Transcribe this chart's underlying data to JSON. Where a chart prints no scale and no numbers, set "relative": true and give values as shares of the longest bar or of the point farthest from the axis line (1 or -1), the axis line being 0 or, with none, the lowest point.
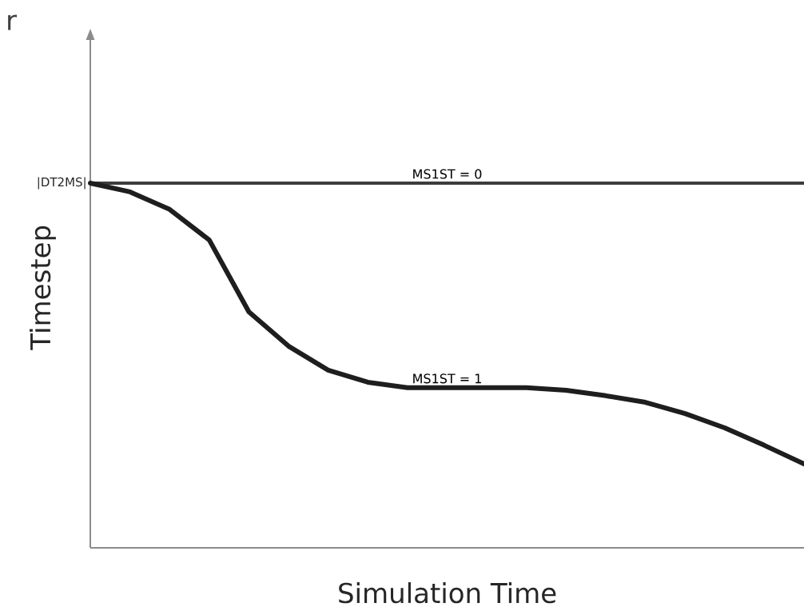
{
  "chart_data": {
    "type": "line",
    "title": "r",
    "xlabel": "Simulation Time",
    "ylabel": "Timestep",
    "relative": true,
    "marker": "none",
    "line_style": "solid",
    "legend": false,
    "categories": [
      null,
      null,
      null,
      null,
      null,
      null,
      null,
      null,
      null,
      null,
      null,
      null,
      null,
      null,
      null,
      null,
      null,
      null,
      null
    ],
    "series": [
      {
        "name": "MS1ST = 0",
        "color": "#3c3c3c",
        "values": [
          1,
          1,
          1,
          1,
          1,
          1,
          1,
          1,
          1,
          1,
          1,
          1,
          1,
          1,
          1,
          1,
          1,
          1,
          1
        ]
      },
      {
        "name": "MS1ST = 1",
        "color": "#1e1e1e",
        "values": [
          1.0,
          0.976,
          0.928,
          0.844,
          0.647,
          0.553,
          0.487,
          0.454,
          0.439,
          0.439,
          0.439,
          0.439,
          0.432,
          0.417,
          0.399,
          0.368,
          0.329,
          0.281,
          0.23
        ]
      }
    ],
    "annotations": [
      "|DT2MS|"
    ]
  }
}
